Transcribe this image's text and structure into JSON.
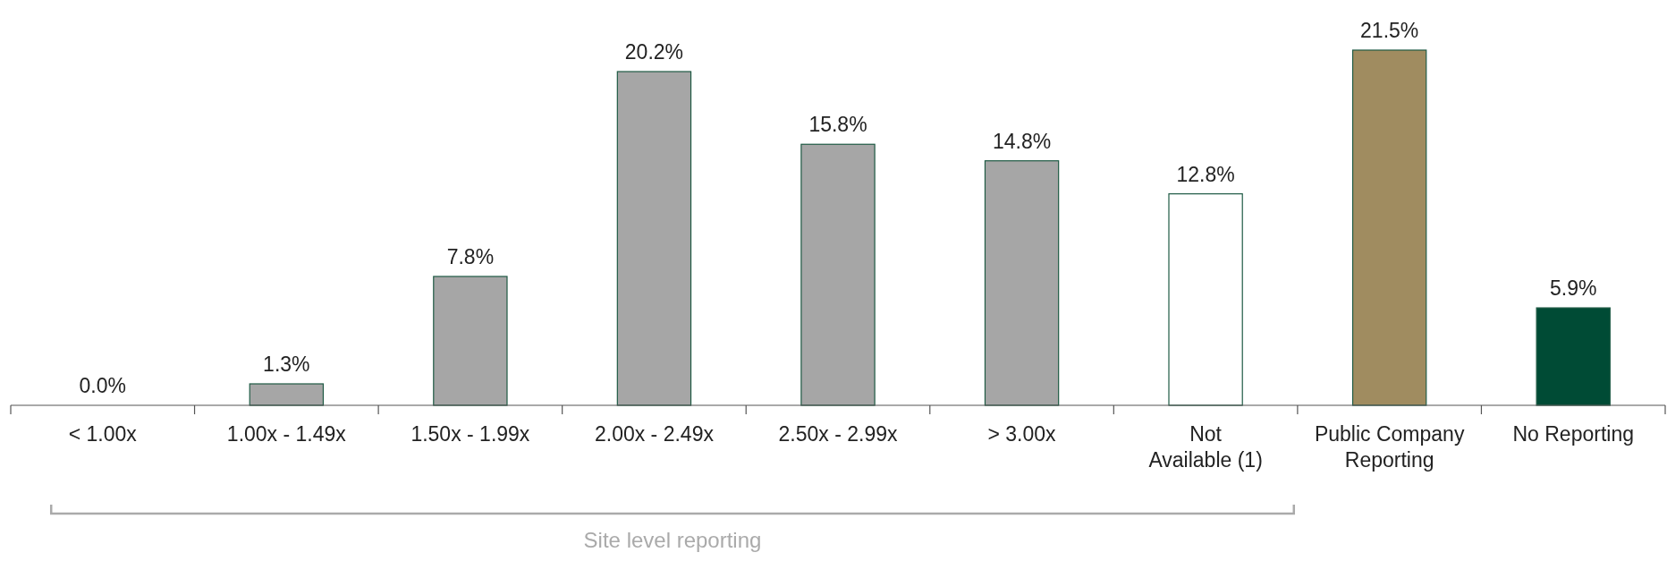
{
  "chart_data": {
    "type": "bar",
    "categories": [
      "< 1.00x",
      "1.00x - 1.49x",
      "1.50x - 1.99x",
      "2.00x - 2.49x",
      "2.50x - 2.99x",
      "> 3.00x",
      "Not Available (1)",
      "Public Company Reporting",
      "No Reporting"
    ],
    "values": [
      0.0,
      1.3,
      7.8,
      20.2,
      15.8,
      14.8,
      12.8,
      21.5,
      5.9
    ],
    "colors": [
      "#a6a6a6",
      "#a6a6a6",
      "#a6a6a6",
      "#a6a6a6",
      "#a6a6a6",
      "#a6a6a6",
      "#ffffff",
      "#a08c60",
      "#004b35"
    ],
    "value_labels": [
      "0.0%",
      "1.3%",
      "7.8%",
      "20.2%",
      "15.8%",
      "14.8%",
      "12.8%",
      "21.5%",
      "5.9%"
    ],
    "annotations": [
      "Site level reporting"
    ]
  }
}
